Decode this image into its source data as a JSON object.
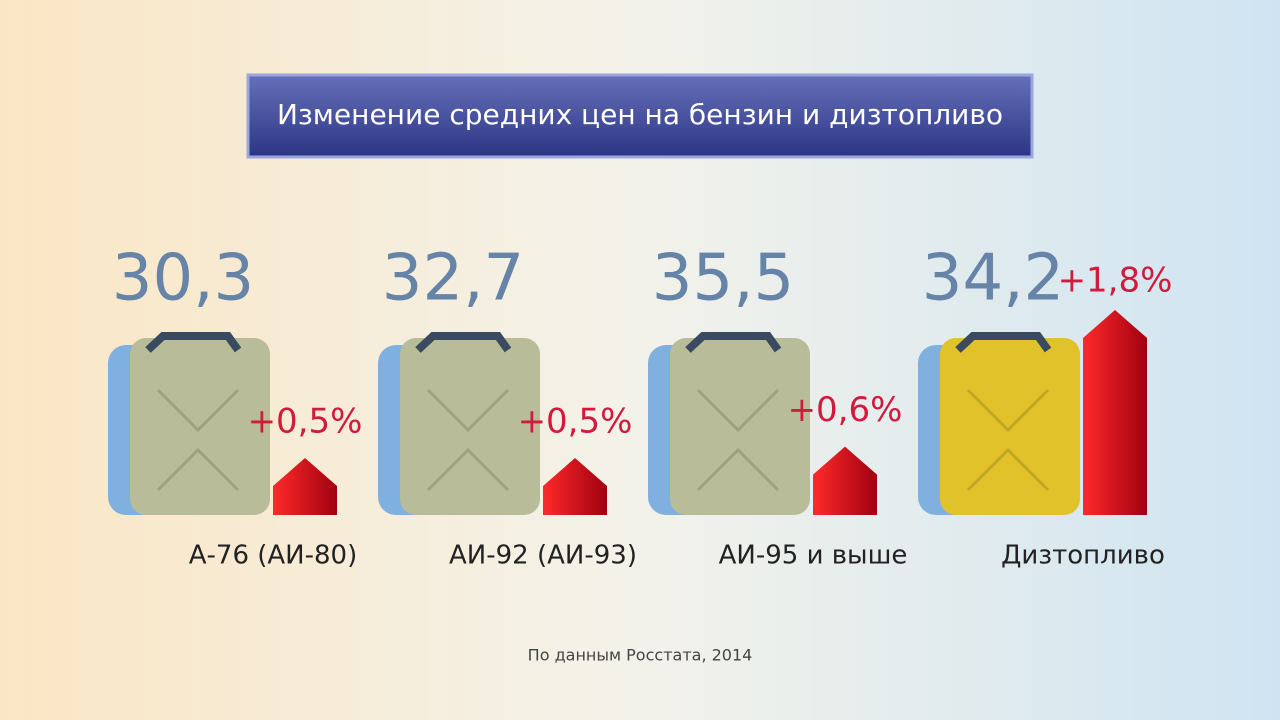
{
  "chart_data": {
    "type": "bar",
    "title": "Изменение средних цен на бензин и дизтопливо",
    "categories": [
      "А-76 (АИ-80)",
      "АИ-92 (АИ-93)",
      "АИ-95 и выше",
      "Дизтопливо"
    ],
    "prices": [
      30.3,
      32.7,
      35.5,
      34.2
    ],
    "price_labels": [
      "30,3",
      "32,7",
      "35,5",
      "34,2"
    ],
    "values": [
      0.5,
      0.5,
      0.6,
      1.8
    ],
    "value_labels": [
      "+0,5%",
      "+0,5%",
      "+0,6%",
      "+1,8%"
    ],
    "color": "#d0101a",
    "can_colors": [
      "#b9bc98",
      "#b9bc98",
      "#b9bc98",
      "#e2c22a"
    ],
    "source": "По данным Росстата, 2014"
  }
}
